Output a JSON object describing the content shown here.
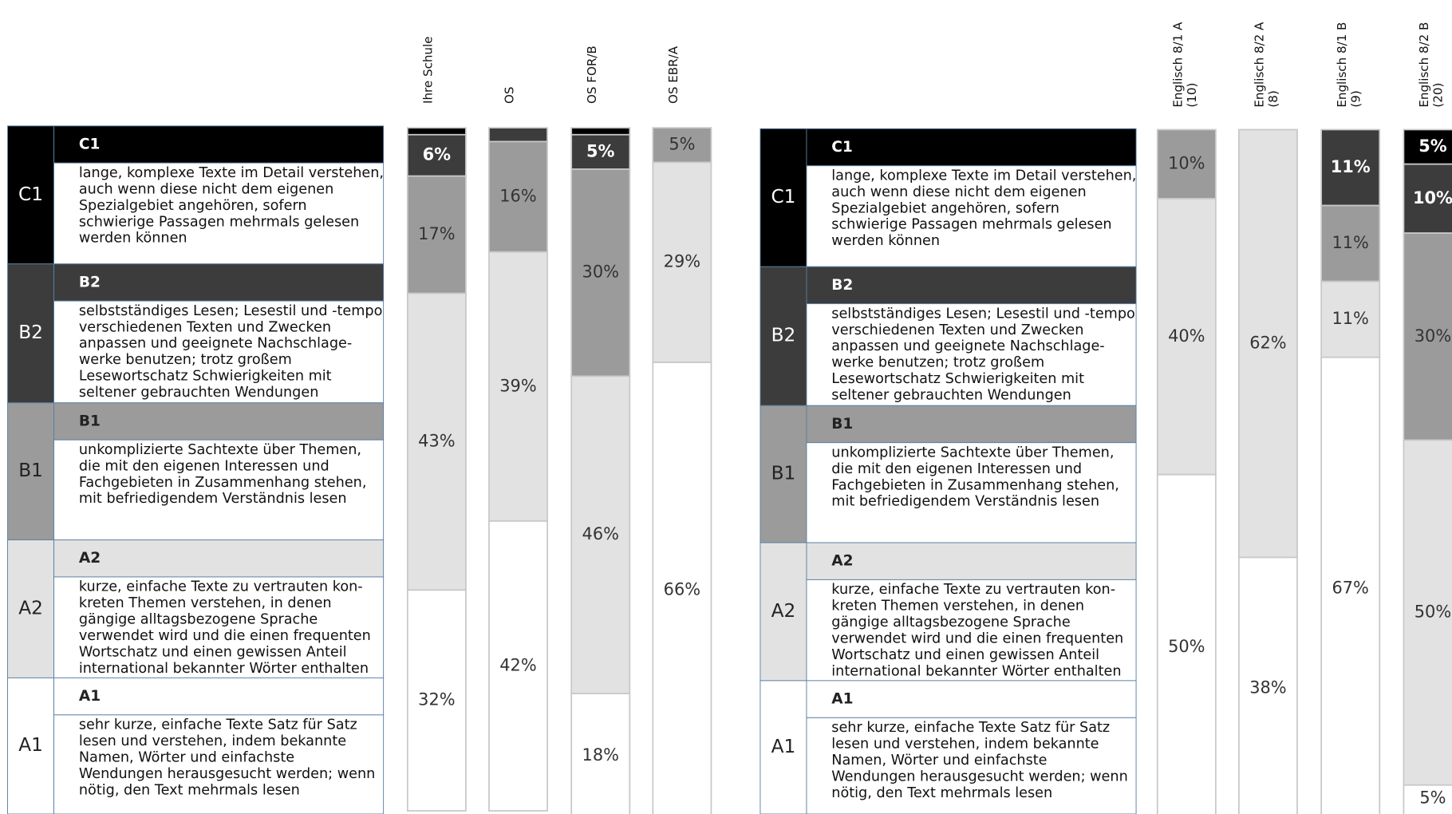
{
  "chart_data": [
    {
      "type": "stacked_bar",
      "categories": [
        "Ihre Schule",
        "OS",
        "OS FOR/B",
        "OS EBR/A"
      ],
      "ylim": [
        0,
        100
      ],
      "series": [
        {
          "name": "C1",
          "color": "#000000",
          "values": [
            1,
            0,
            1,
            0
          ],
          "value_labels": [
            null,
            null,
            null,
            null
          ]
        },
        {
          "name": "B2",
          "color": "#3c3c3c",
          "values": [
            6,
            2,
            5,
            0
          ],
          "value_labels": [
            "6%",
            null,
            "5%",
            null
          ]
        },
        {
          "name": "B1",
          "color": "#9b9b9b",
          "values": [
            17,
            16,
            30,
            5
          ],
          "value_labels": [
            "17%",
            "16%",
            "30%",
            "5%"
          ]
        },
        {
          "name": "A2",
          "color": "#e2e2e2",
          "values": [
            43,
            39,
            46,
            29
          ],
          "value_labels": [
            "43%",
            "39%",
            "46%",
            "29%"
          ]
        },
        {
          "name": "A1",
          "color": "#ffffff",
          "values": [
            32,
            42,
            18,
            66
          ],
          "value_labels": [
            "32%",
            "42%",
            "18%",
            "66%"
          ]
        }
      ]
    },
    {
      "type": "stacked_bar",
      "categories": [
        "Englisch 8/1 A\n(10)",
        "Englisch 8/2 A\n(8)",
        "Englisch 8/1 B\n(9)",
        "Englisch 8/2 B\n(20)"
      ],
      "ylim": [
        0,
        100
      ],
      "series": [
        {
          "name": "C1",
          "color": "#000000",
          "values": [
            0,
            0,
            0,
            5
          ],
          "value_labels": [
            null,
            null,
            null,
            "5%"
          ]
        },
        {
          "name": "B2",
          "color": "#3c3c3c",
          "values": [
            0,
            0,
            11,
            10
          ],
          "value_labels": [
            null,
            null,
            "11%",
            "10%"
          ]
        },
        {
          "name": "B1",
          "color": "#9b9b9b",
          "values": [
            10,
            0,
            11,
            30
          ],
          "value_labels": [
            "10%",
            null,
            "11%",
            "30%"
          ]
        },
        {
          "name": "A2",
          "color": "#e2e2e2",
          "values": [
            40,
            62,
            11,
            50
          ],
          "value_labels": [
            "40%",
            "62%",
            "11%",
            "50%"
          ]
        },
        {
          "name": "A1",
          "color": "#ffffff",
          "values": [
            50,
            38,
            67,
            5
          ],
          "value_labels": [
            "50%",
            "38%",
            "67%",
            "5%"
          ]
        }
      ]
    }
  ],
  "level_descriptions": [
    [
      "lange, komplexe Texte im Detail verstehen,",
      "auch wenn diese nicht dem eigenen",
      "Spezialgebiet angehören, sofern",
      "schwierige Passagen mehrmals gelesen",
      "werden können"
    ],
    [
      "selbstständiges Lesen; Lesestil und -tempo",
      "verschiedenen Texten und Zwecken",
      "anpassen und geeignete Nachschlage-",
      "werke benutzen; trotz großem",
      "Lesewortschatz Schwierigkeiten mit",
      "seltener gebrauchten Wendungen"
    ],
    [
      "unkomplizierte Sachtexte über Themen,",
      "die mit den eigenen Interessen und",
      "Fachgebieten in Zusammenhang stehen,",
      "mit befriedigendem Verständnis lesen"
    ],
    [
      "kurze, einfache Texte zu vertrauten kon-",
      "kreten Themen verstehen, in denen",
      "gängige alltagsbezogene Sprache",
      "verwendet wird und die einen frequenten",
      "Wortschatz und einen gewissen Anteil",
      "international bekannter Wörter enthalten"
    ],
    [
      "sehr kurze, einfache Texte Satz für Satz",
      "lesen und verstehen, indem bekannte",
      "Namen, Wörter und einfachste",
      "Wendungen herausgesucht werden; wenn",
      "nötig, den Text mehrmals lesen"
    ]
  ]
}
